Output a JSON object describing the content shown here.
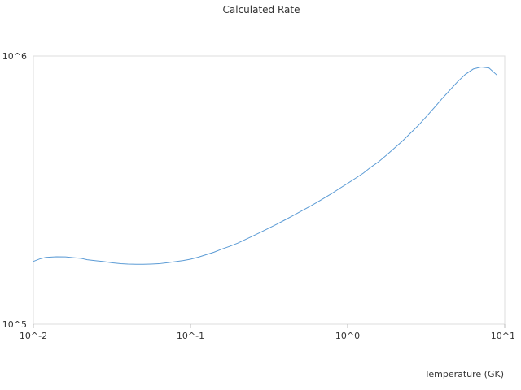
{
  "chart_data": {
    "type": "line",
    "title": "Calculated Rate",
    "xlabel": "Temperature (GK)",
    "ylabel": "",
    "x_scale": "log",
    "y_scale": "log",
    "xlim": [
      0.01,
      10
    ],
    "ylim": [
      100000,
      1000000
    ],
    "x_ticks": [
      {
        "value": 0.01,
        "label": "10^-2"
      },
      {
        "value": 0.1,
        "label": "10^-1"
      },
      {
        "value": 1,
        "label": "10^0"
      },
      {
        "value": 10,
        "label": "10^1"
      }
    ],
    "y_ticks": [
      {
        "value": 100000,
        "label": "10^5"
      },
      {
        "value": 1000000,
        "label": "10^6"
      }
    ],
    "grid": false,
    "legend": "none",
    "series": [
      {
        "color": "#5b9bd5",
        "x": [
          0.01,
          0.011,
          0.012,
          0.014,
          0.016,
          0.018,
          0.02,
          0.022,
          0.025,
          0.028,
          0.032,
          0.036,
          0.04,
          0.045,
          0.05,
          0.056,
          0.063,
          0.07,
          0.08,
          0.09,
          0.1,
          0.112,
          0.126,
          0.141,
          0.158,
          0.178,
          0.2,
          0.224,
          0.251,
          0.282,
          0.316,
          0.355,
          0.398,
          0.447,
          0.501,
          0.562,
          0.631,
          0.708,
          0.794,
          0.891,
          1.0,
          1.12,
          1.26,
          1.41,
          1.58,
          1.78,
          2.0,
          2.24,
          2.51,
          2.82,
          3.16,
          3.55,
          3.98,
          4.47,
          5.01,
          5.62,
          6.31,
          7.08,
          7.94,
          8.91
        ],
        "y": [
          171500,
          175300,
          177500,
          178400,
          178300,
          177100,
          176200,
          174000,
          172500,
          171300,
          169400,
          168200,
          167600,
          167300,
          167300,
          167600,
          168100,
          169300,
          171100,
          172800,
          174800,
          177800,
          181700,
          185600,
          190600,
          195300,
          200700,
          207000,
          213600,
          220800,
          228300,
          236200,
          244700,
          253700,
          263100,
          272900,
          283700,
          295300,
          307300,
          321200,
          335200,
          349900,
          366100,
          385700,
          404100,
          428800,
          455400,
          482700,
          515700,
          551500,
          593300,
          640700,
          692200,
          746000,
          802300,
          855200,
          895000,
          910000,
          903100,
          849900
        ]
      }
    ]
  }
}
